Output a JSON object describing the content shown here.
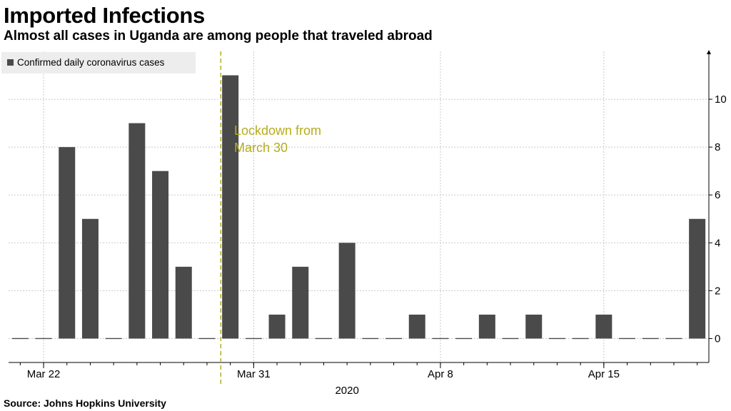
{
  "chart_data": {
    "type": "bar",
    "title": "Imported Infections",
    "subtitle": "Almost all cases in Uganda are among people that traveled abroad",
    "source": "Source: Johns Hopkins University",
    "year_label": "2020",
    "series": [
      {
        "name": "Confirmed daily coronavirus cases",
        "color": "#4a4a4a",
        "values": [
          0,
          0,
          8,
          5,
          0,
          9,
          7,
          3,
          0,
          11,
          0,
          1,
          3,
          0,
          4,
          0,
          0,
          1,
          0,
          0,
          1,
          0,
          1,
          0,
          0,
          1,
          0,
          0,
          0,
          5
        ]
      }
    ],
    "x": [
      "2020-03-21",
      "2020-03-22",
      "2020-03-23",
      "2020-03-24",
      "2020-03-25",
      "2020-03-26",
      "2020-03-27",
      "2020-03-28",
      "2020-03-29",
      "2020-03-30",
      "2020-03-31",
      "2020-04-01",
      "2020-04-02",
      "2020-04-03",
      "2020-04-04",
      "2020-04-05",
      "2020-04-06",
      "2020-04-07",
      "2020-04-08",
      "2020-04-09",
      "2020-04-10",
      "2020-04-11",
      "2020-04-12",
      "2020-04-13",
      "2020-04-14",
      "2020-04-15",
      "2020-04-16",
      "2020-04-17",
      "2020-04-18",
      "2020-04-19"
    ],
    "x_ticks": [
      {
        "x": "2020-03-22",
        "label": "Mar 22"
      },
      {
        "x": "2020-03-31",
        "label": "Mar 31"
      },
      {
        "x": "2020-04-08",
        "label": "Apr 8"
      },
      {
        "x": "2020-04-15",
        "label": "Apr 15"
      }
    ],
    "y_ticks": [
      0,
      2,
      4,
      6,
      8,
      10
    ],
    "ylim": [
      -1,
      12
    ],
    "y_axis_side": "right",
    "grid": true,
    "legend_position": "top-left",
    "annotation": {
      "text_lines": [
        "Lockdown from",
        "March 30"
      ],
      "x": "2020-03-30",
      "color": "#b5ad1e",
      "style": "dashed-vertical-line"
    }
  }
}
